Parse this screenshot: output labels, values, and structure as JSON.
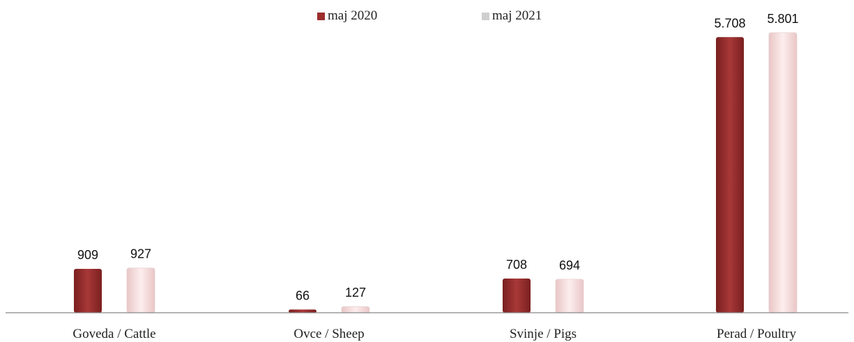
{
  "chart_data": {
    "type": "bar",
    "categories": [
      "Goveda / Cattle",
      "Ovce / Sheep",
      "Svinje / Pigs",
      "Perad / Poultry"
    ],
    "series": [
      {
        "name": "maj 2020",
        "values": [
          909,
          66,
          708,
          5708
        ],
        "labels": [
          "909",
          "66",
          "708",
          "5.708"
        ],
        "color": "#9b2d2d"
      },
      {
        "name": "maj 2021",
        "values": [
          927,
          127,
          694,
          5801
        ],
        "labels": [
          "927",
          "127",
          "694",
          "5.801"
        ],
        "color": "#f8dede"
      }
    ],
    "title": "",
    "xlabel": "",
    "ylabel": "",
    "ylim": [
      0,
      5900
    ],
    "grid": false,
    "legend_position": "top-center"
  }
}
